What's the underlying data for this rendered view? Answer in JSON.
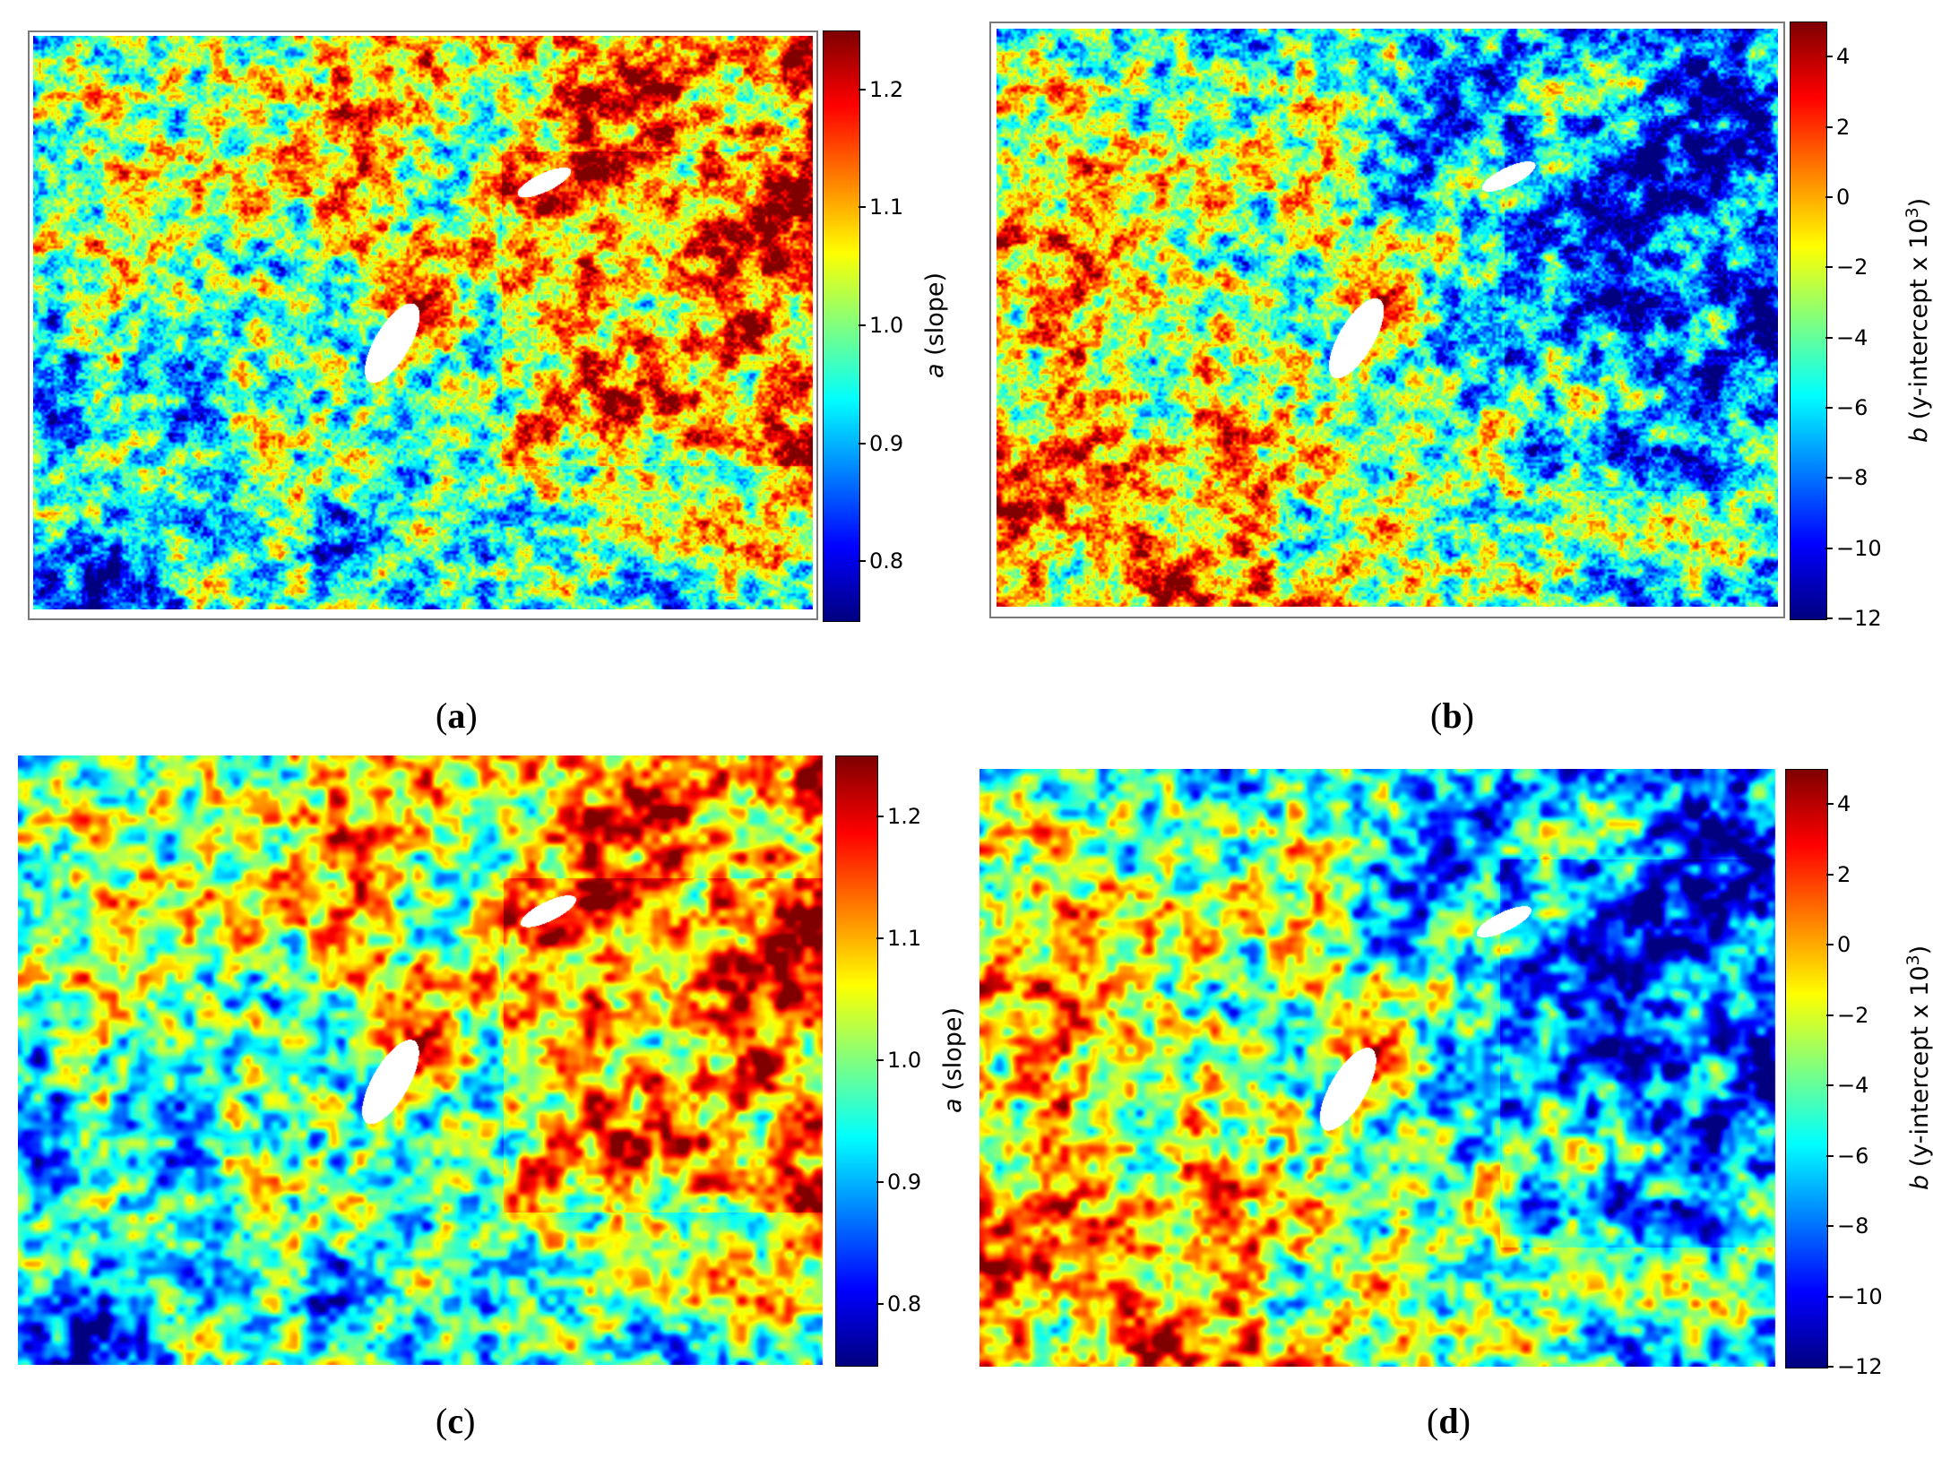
{
  "panels": [
    {
      "id": "a",
      "caption_letter": "a",
      "colorbar": {
        "var": "a",
        "label": " (slope)",
        "ticks": [
          "0.8",
          "0.9",
          "1.0",
          "1.1",
          "1.2"
        ],
        "range": [
          0.75,
          1.25
        ]
      },
      "field": {
        "variant": "slope",
        "smooth": false
      }
    },
    {
      "id": "b",
      "caption_letter": "b",
      "colorbar": {
        "var": "b",
        "label": " (y-intercept x 10",
        "label_sup": "3",
        "label_end": ")",
        "ticks": [
          "4",
          "2",
          "0",
          "−2",
          "−4",
          "−6",
          "−8",
          "−10",
          "−12"
        ],
        "range": [
          -12,
          5
        ]
      },
      "field": {
        "variant": "intercept",
        "smooth": false
      }
    },
    {
      "id": "c",
      "caption_letter": "c",
      "colorbar": {
        "var": "a",
        "label": " (slope)",
        "ticks": [
          "0.8",
          "0.9",
          "1.0",
          "1.1",
          "1.2"
        ],
        "range": [
          0.75,
          1.25
        ]
      },
      "field": {
        "variant": "slope",
        "smooth": true
      }
    },
    {
      "id": "d",
      "caption_letter": "d",
      "colorbar": {
        "var": "b",
        "label": " (y-intercept x 10",
        "label_sup": "3",
        "label_end": ")",
        "ticks": [
          "4",
          "2",
          "0",
          "−2",
          "−4",
          "−6",
          "−8",
          "−10",
          "−12"
        ],
        "range": [
          -12,
          5
        ]
      },
      "field": {
        "variant": "intercept",
        "smooth": true
      }
    }
  ],
  "colormap": "jet",
  "chart_data": [
    {
      "type": "heatmap",
      "panel": "a",
      "colorbar_label": "a (slope)",
      "colorbar_range": [
        0.75,
        1.25
      ],
      "colorbar_ticks": [
        0.8,
        0.9,
        1.0,
        1.1,
        1.2
      ],
      "colormap": "jet"
    },
    {
      "type": "heatmap",
      "panel": "b",
      "colorbar_label": "b (y-intercept x 10^3)",
      "colorbar_range": [
        -12,
        5
      ],
      "colorbar_ticks": [
        -12,
        -10,
        -8,
        -6,
        -4,
        -2,
        0,
        2,
        4
      ],
      "colormap": "jet"
    },
    {
      "type": "heatmap",
      "panel": "c",
      "colorbar_label": "a (slope)",
      "colorbar_range": [
        0.75,
        1.25
      ],
      "colorbar_ticks": [
        0.8,
        0.9,
        1.0,
        1.1,
        1.2
      ],
      "colormap": "jet"
    },
    {
      "type": "heatmap",
      "panel": "d",
      "colorbar_label": "b (y-intercept x 10^3)",
      "colorbar_range": [
        -12,
        5
      ],
      "colorbar_ticks": [
        -12,
        -10,
        -8,
        -6,
        -4,
        -2,
        0,
        2,
        4
      ],
      "colormap": "jet"
    }
  ]
}
